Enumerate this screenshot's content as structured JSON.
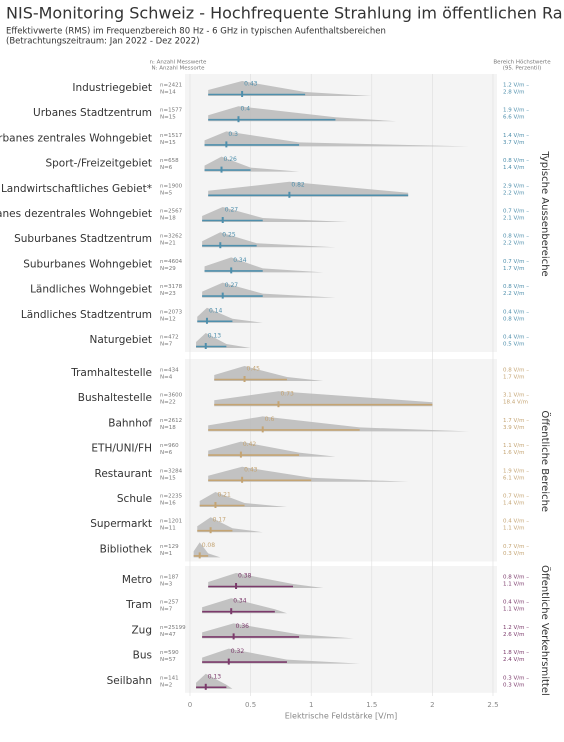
{
  "chart_data": {
    "type": "ridgeline",
    "title": "NIS-Monitoring Schweiz - Hochfrequente Strahlung im öffentlichen Raum",
    "subtitle": [
      "Effektivwerte (RMS) im Frequenzbereich 80 Hz - 6 GHz in typischen Aufenthaltsbereichen",
      "(Betrachtungszeitraum: Jan 2022 - Dez 2022)"
    ],
    "left_header": [
      "n: Anzahl Messwerte",
      "N: Anzahl Messorte"
    ],
    "right_header": [
      "Bereich Höchstwerte",
      "(95. Perzentil)"
    ],
    "x_label": "Elektrische Feldstärke [V/m]",
    "xlim": [
      0,
      2.5
    ],
    "xticks": [
      0,
      0.5,
      1,
      1.5,
      2,
      2.5
    ],
    "grid": true,
    "groups": [
      {
        "name": "Typische Aussenbereiche",
        "color": "#4f8fac",
        "categories": [
          "Industriegebiet",
          "Urbanes Stadtzentrum",
          "Urbanes zentrales Wohngebiet",
          "Sport-/Freizeitgebiet",
          "Landwirtschaftliches Gebiet*",
          "Urbanes dezentrales Wohngebiet",
          "Suburbanes Stadtzentrum",
          "Suburbanes Wohngebiet",
          "Ländliches Wohngebiet",
          "Ländliches Stadtzentrum",
          "Naturgebiet"
        ],
        "n_labels": [
          "n=2421",
          "n=1577",
          "n=1517",
          "n=658",
          "n=1900",
          "n=2567",
          "n=3262",
          "n=4604",
          "n=3178",
          "n=2073",
          "n=472"
        ],
        "N_labels": [
          "N=14",
          "N=15",
          "N=15",
          "N=6",
          "N=5",
          "N=18",
          "N=21",
          "N=29",
          "N=23",
          "N=12",
          "N=7"
        ],
        "values": [
          0.43,
          0.4,
          0.3,
          0.26,
          0.82,
          0.27,
          0.25,
          0.34,
          0.27,
          0.14,
          0.13
        ],
        "low": [
          0.15,
          0.15,
          0.12,
          0.12,
          0.15,
          0.1,
          0.1,
          0.12,
          0.1,
          0.06,
          0.05
        ],
        "high": [
          0.95,
          1.2,
          0.9,
          0.5,
          1.8,
          0.6,
          0.55,
          0.6,
          0.6,
          0.35,
          0.3
        ],
        "max": [
          1.5,
          1.7,
          2.3,
          0.9,
          1.8,
          1.3,
          1.2,
          1.1,
          1.2,
          0.6,
          0.5
        ],
        "range_low": [
          "1.2 V/m –",
          "1.9 V/m –",
          "1.4 V/m –",
          "0.8 V/m –",
          "2.9 V/m –",
          "0.7 V/m –",
          "0.8 V/m –",
          "0.7 V/m –",
          "0.8 V/m –",
          "0.4 V/m –",
          "0.4 V/m –"
        ],
        "range_high": [
          "2.8 V/m",
          "6.6 V/m",
          "3.7 V/m",
          "1.4 V/m",
          "2.2 V/m",
          "2.1 V/m",
          "2.2 V/m",
          "1.7 V/m",
          "2.2 V/m",
          "0.8 V/m",
          "0.5 V/m"
        ]
      },
      {
        "name": "Öffentliche Bereiche",
        "color": "#c4a473",
        "categories": [
          "Tramhaltestelle",
          "Bushaltestelle",
          "Bahnhof",
          "ETH/UNI/FH",
          "Restaurant",
          "Schule",
          "Supermarkt",
          "Bibliothek"
        ],
        "n_labels": [
          "n=434",
          "n=3600",
          "n=2612",
          "n=960",
          "n=3284",
          "n=2235",
          "n=1201",
          "n=129"
        ],
        "N_labels": [
          "N=4",
          "N=22",
          "N=18",
          "N=6",
          "N=15",
          "N=16",
          "N=11",
          "N=1"
        ],
        "values": [
          0.45,
          0.73,
          0.6,
          0.42,
          0.43,
          0.21,
          0.17,
          0.08
        ],
        "low": [
          0.2,
          0.2,
          0.15,
          0.15,
          0.15,
          0.08,
          0.06,
          0.03
        ],
        "high": [
          0.8,
          2.0,
          1.4,
          0.9,
          1.0,
          0.45,
          0.35,
          0.15
        ],
        "max": [
          1.1,
          2.0,
          2.3,
          1.2,
          1.8,
          0.8,
          0.6,
          0.25
        ],
        "range_low": [
          "0.8 V/m –",
          "3.1 V/m –",
          "1.7 V/m –",
          "1.1 V/m –",
          "1.9 V/m –",
          "0.7 V/m –",
          "0.4 V/m –",
          "0.7 V/m –"
        ],
        "range_high": [
          "1.7 V/m",
          "18.4 V/m",
          "3.9 V/m",
          "1.6 V/m",
          "6.1 V/m",
          "1.4 V/m",
          "1.1 V/m",
          "0.3 V/m"
        ]
      },
      {
        "name": "Öffentliche Verkehrsmittel",
        "color": "#7b3a6b",
        "categories": [
          "Metro",
          "Tram",
          "Zug",
          "Bus",
          "Seilbahn"
        ],
        "n_labels": [
          "n=187",
          "n=257",
          "n=25199",
          "n=590",
          "n=141"
        ],
        "N_labels": [
          "N=3",
          "N=7",
          "N=47",
          "N=57",
          "N=2"
        ],
        "values": [
          0.38,
          0.34,
          0.36,
          0.32,
          0.13
        ],
        "low": [
          0.15,
          0.1,
          0.1,
          0.1,
          0.05
        ],
        "high": [
          0.85,
          0.7,
          0.9,
          0.8,
          0.3
        ],
        "max": [
          1.1,
          0.8,
          1.35,
          1.4,
          0.35
        ],
        "range_low": [
          "0.8 V/m –",
          "0.4 V/m –",
          "1.2 V/m –",
          "1.8 V/m –",
          "0.3 V/m –"
        ],
        "range_high": [
          "1.1 V/m",
          "1.1 V/m",
          "2.6 V/m",
          "2.4 V/m",
          "0.3 V/m"
        ]
      }
    ]
  }
}
